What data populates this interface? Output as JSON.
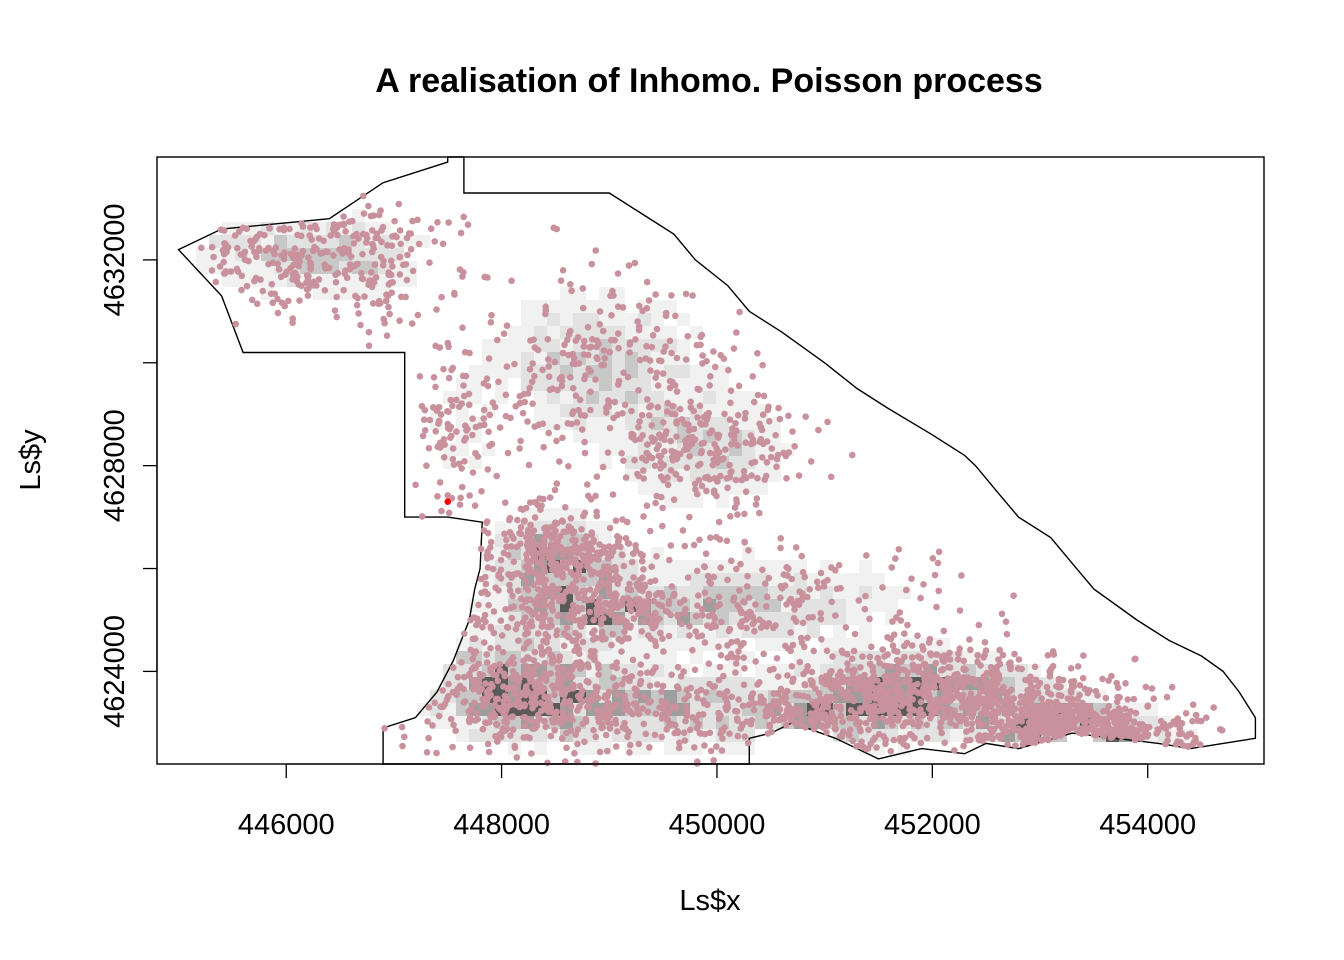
{
  "chart_data": {
    "type": "scatter",
    "title": "A realisation of Inhomo. Poisson process",
    "xlabel": "Ls$x",
    "ylabel": "Ls$y",
    "xlim": [
      444800,
      455080
    ],
    "ylim": [
      4622200,
      4634000
    ],
    "x_ticks": [
      446000,
      448000,
      450000,
      452000,
      454000
    ],
    "x_tick_labels": [
      "446000",
      "448000",
      "450000",
      "452000",
      "454000"
    ],
    "y_ticks": [
      4624000,
      4626000,
      4628000,
      4630000,
      4632000
    ],
    "y_tick_labels": [
      "4624000",
      "",
      "4628000",
      "",
      "4632000"
    ],
    "grid": false,
    "legend": "none",
    "window_boundary": {
      "x": [
        445000,
        445400,
        446400,
        446900,
        447500,
        447500,
        447650,
        447650,
        449000,
        449600,
        449800,
        450100,
        450300,
        450600,
        451000,
        451300,
        451600,
        452000,
        452300,
        452400,
        452600,
        452800,
        453100,
        453300,
        453500,
        453700,
        453900,
        454200,
        454500,
        454700,
        454850,
        455000,
        455000,
        454700,
        454400,
        454100,
        453700,
        453300,
        452800,
        452500,
        452300,
        451900,
        451500,
        451100,
        450700,
        450500,
        450300,
        450300,
        448000,
        447800,
        446900,
        446900,
        447200,
        447400,
        447550,
        447700,
        447750,
        447800,
        447820,
        447500,
        447400,
        447100,
        447100,
        446200,
        445600,
        445400,
        445000
      ],
      "y": [
        4632200,
        4632600,
        4632800,
        4633500,
        4633900,
        4634000,
        4634000,
        4633300,
        4633300,
        4632500,
        4632000,
        4631500,
        4631000,
        4630600,
        4630000,
        4629500,
        4629100,
        4628600,
        4628200,
        4628000,
        4627500,
        4627000,
        4626600,
        4626100,
        4625600,
        4625300,
        4625000,
        4624600,
        4624300,
        4624000,
        4623600,
        4623100,
        4622700,
        4622600,
        4622500,
        4622600,
        4622700,
        4622800,
        4622500,
        4622600,
        4622400,
        4622500,
        4622300,
        4622700,
        4623000,
        4622800,
        4622700,
        4622200,
        4622200,
        4622200,
        4622200,
        4622900,
        4623100,
        4623600,
        4624200,
        4625000,
        4625600,
        4626000,
        4626900,
        4627000,
        4627000,
        4627000,
        4630200,
        4630200,
        4630200,
        4631300,
        4632200
      ]
    },
    "intensity_colors": [
      "#ffffff",
      "#f1f1f1",
      "#e2e2e2",
      "#c8c8c8",
      "#9e9e9e",
      "#5a5a5a"
    ],
    "series": [
      {
        "color": "#c8919b",
        "point_count": 3600,
        "clusters": [
          {
            "cx": 445900,
            "cy": 4632200,
            "sx": 600,
            "sy": 500,
            "w": 4
          },
          {
            "cx": 446700,
            "cy": 4632000,
            "sx": 450,
            "sy": 600,
            "w": 3
          },
          {
            "cx": 447600,
            "cy": 4628500,
            "sx": 250,
            "sy": 1000,
            "w": 2
          },
          {
            "cx": 448900,
            "cy": 4630000,
            "sx": 600,
            "sy": 900,
            "w": 5
          },
          {
            "cx": 449900,
            "cy": 4628300,
            "sx": 500,
            "sy": 700,
            "w": 5
          },
          {
            "cx": 448500,
            "cy": 4626200,
            "sx": 400,
            "sy": 500,
            "w": 7
          },
          {
            "cx": 449000,
            "cy": 4625200,
            "sx": 700,
            "sy": 400,
            "w": 6
          },
          {
            "cx": 450400,
            "cy": 4625400,
            "sx": 900,
            "sy": 600,
            "w": 4
          },
          {
            "cx": 448100,
            "cy": 4623700,
            "sx": 550,
            "sy": 600,
            "w": 8
          },
          {
            "cx": 449400,
            "cy": 4623300,
            "sx": 900,
            "sy": 500,
            "w": 6
          },
          {
            "cx": 451500,
            "cy": 4623500,
            "sx": 500,
            "sy": 500,
            "w": 6
          },
          {
            "cx": 452200,
            "cy": 4623700,
            "sx": 600,
            "sy": 450,
            "w": 6
          },
          {
            "cx": 453100,
            "cy": 4623000,
            "sx": 450,
            "sy": 350,
            "w": 9
          },
          {
            "cx": 453800,
            "cy": 4622700,
            "sx": 450,
            "sy": 250,
            "w": 4
          },
          {
            "cx": 450900,
            "cy": 4622900,
            "sx": 500,
            "sy": 400,
            "w": 3
          }
        ]
      },
      {
        "color": "#ff0000",
        "points": [
          [
            447500,
            4627300
          ]
        ]
      }
    ]
  }
}
